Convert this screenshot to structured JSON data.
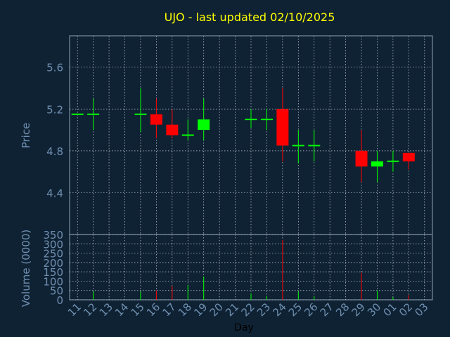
{
  "title": "UJO - last updated 02/10/2025",
  "colors": {
    "background": "#0f2233",
    "plot_background": "#0f2233",
    "frame": "#8ea3b6",
    "grid": "#c8d3dc",
    "title": "#ffff00",
    "axis_text": "#6f8fb1",
    "xlabel_text": "#000000",
    "up": "#00ff00",
    "down": "#ff0000"
  },
  "chart_data": [
    {
      "type": "candlestick",
      "ylabel": "Price",
      "ylim": [
        4.0,
        5.9
      ],
      "yticks": [
        "4.4",
        "4.8",
        "5.2",
        "5.6"
      ],
      "grid": true,
      "candles": [
        {
          "day": "11",
          "open": 5.15,
          "high": 5.15,
          "low": 5.15,
          "close": 5.15
        },
        {
          "day": "12",
          "open": 5.15,
          "high": 5.3,
          "low": 5.0,
          "close": 5.15
        },
        {
          "day": "15",
          "open": 5.15,
          "high": 5.4,
          "low": 4.98,
          "close": 5.15
        },
        {
          "day": "16",
          "open": 5.15,
          "high": 5.3,
          "low": 4.92,
          "close": 5.05
        },
        {
          "day": "17",
          "open": 5.05,
          "high": 5.2,
          "low": 4.92,
          "close": 4.95
        },
        {
          "day": "18",
          "open": 4.95,
          "high": 5.1,
          "low": 4.9,
          "close": 4.95
        },
        {
          "day": "19",
          "open": 5.0,
          "high": 5.3,
          "low": 4.9,
          "close": 5.1
        },
        {
          "day": "22",
          "open": 5.1,
          "high": 5.2,
          "low": 5.02,
          "close": 5.1
        },
        {
          "day": "23",
          "open": 5.1,
          "high": 5.2,
          "low": 5.0,
          "close": 5.1
        },
        {
          "day": "24",
          "open": 5.2,
          "high": 5.4,
          "low": 4.7,
          "close": 4.85
        },
        {
          "day": "25",
          "open": 4.85,
          "high": 5.0,
          "low": 4.68,
          "close": 4.85
        },
        {
          "day": "26",
          "open": 4.85,
          "high": 5.0,
          "low": 4.7,
          "close": 4.85
        },
        {
          "day": "29",
          "open": 4.8,
          "high": 5.0,
          "low": 4.5,
          "close": 4.65
        },
        {
          "day": "30",
          "open": 4.65,
          "high": 4.8,
          "low": 4.5,
          "close": 4.7
        },
        {
          "day": "01",
          "open": 4.7,
          "high": 4.8,
          "low": 4.6,
          "close": 4.7
        },
        {
          "day": "02",
          "open": 4.78,
          "high": 4.78,
          "low": 4.62,
          "close": 4.7
        }
      ]
    },
    {
      "type": "bar",
      "ylabel": "Volume (0000)",
      "xlabel": "Day",
      "ylim": [
        0,
        350
      ],
      "yticks": [
        "0",
        "50",
        "100",
        "150",
        "200",
        "250",
        "300",
        "350"
      ],
      "grid": true,
      "categories": [
        "11",
        "12",
        "13",
        "14",
        "15",
        "16",
        "17",
        "18",
        "19",
        "20",
        "21",
        "22",
        "23",
        "24",
        "25",
        "26",
        "27",
        "28",
        "29",
        "30",
        "01",
        "02",
        "03"
      ],
      "volumes": [
        {
          "day": "12",
          "value": 45,
          "dir": "up"
        },
        {
          "day": "15",
          "value": 45,
          "dir": "up"
        },
        {
          "day": "16",
          "value": 50,
          "dir": "down"
        },
        {
          "day": "17",
          "value": 75,
          "dir": "down"
        },
        {
          "day": "18",
          "value": 80,
          "dir": "up"
        },
        {
          "day": "19",
          "value": 125,
          "dir": "up"
        },
        {
          "day": "22",
          "value": 35,
          "dir": "up"
        },
        {
          "day": "23",
          "value": 20,
          "dir": "up"
        },
        {
          "day": "24",
          "value": 320,
          "dir": "down"
        },
        {
          "day": "25",
          "value": 45,
          "dir": "up"
        },
        {
          "day": "26",
          "value": 20,
          "dir": "up"
        },
        {
          "day": "29",
          "value": 145,
          "dir": "down"
        },
        {
          "day": "30",
          "value": 50,
          "dir": "up"
        },
        {
          "day": "01",
          "value": 15,
          "dir": "up"
        },
        {
          "day": "02",
          "value": 25,
          "dir": "down"
        }
      ]
    }
  ]
}
